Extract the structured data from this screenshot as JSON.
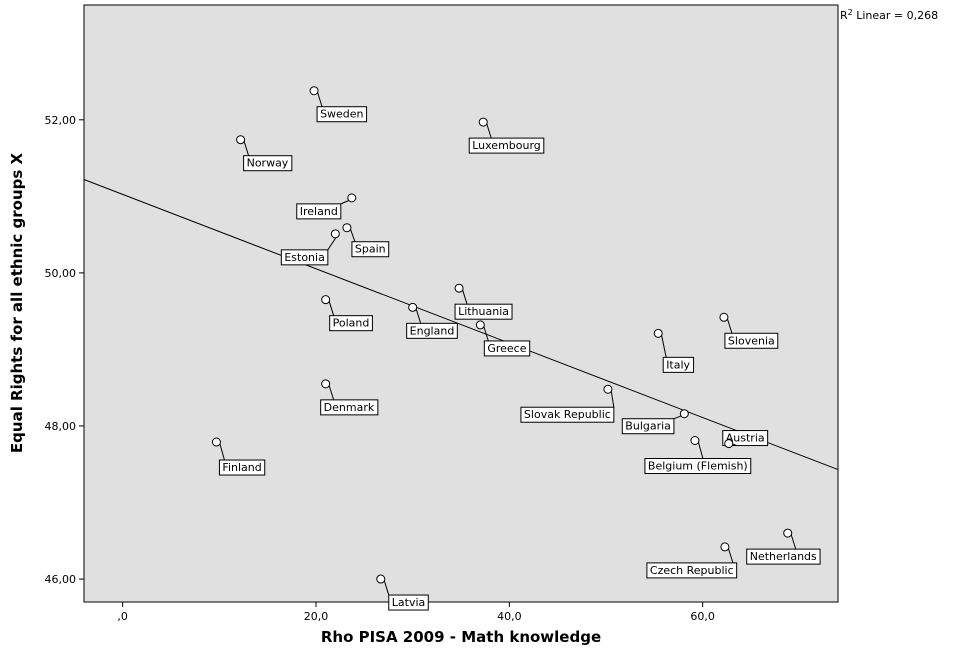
{
  "chart_data": {
    "type": "scatter",
    "xlabel": "Rho PISA 2009 - Math knowledge",
    "ylabel": "Equal Rights for all ethnic groups X",
    "xlim": [
      -4,
      74
    ],
    "ylim": [
      45.7,
      53.5
    ],
    "x_ticks": [
      0,
      20,
      40,
      60
    ],
    "x_tick_labels": [
      ",0",
      "20,0",
      "40,0",
      "60,0"
    ],
    "y_ticks": [
      46,
      48,
      50,
      52
    ],
    "y_tick_labels": [
      "46,00",
      "48,00",
      "50,00",
      "52,00"
    ],
    "grid": false,
    "fit_line": {
      "label_prefix": "R",
      "label_sup": "2",
      "label_suffix": " Linear = 0,268",
      "start": [
        -4,
        51.22
      ],
      "end": [
        74,
        47.43
      ]
    },
    "points": [
      {
        "label": "Sweden",
        "x": 19.8,
        "y": 52.38
      },
      {
        "label": "Luxembourg",
        "x": 37.3,
        "y": 51.97
      },
      {
        "label": "Norway",
        "x": 12.2,
        "y": 51.74
      },
      {
        "label": "Ireland",
        "x": 23.7,
        "y": 50.98
      },
      {
        "label": "Spain",
        "x": 23.2,
        "y": 50.59
      },
      {
        "label": "Estonia",
        "x": 22.0,
        "y": 50.51
      },
      {
        "label": "Lithuania",
        "x": 34.8,
        "y": 49.8
      },
      {
        "label": "Poland",
        "x": 21.0,
        "y": 49.65
      },
      {
        "label": "England",
        "x": 30.0,
        "y": 49.55
      },
      {
        "label": "Slovenia",
        "x": 62.2,
        "y": 49.42
      },
      {
        "label": "Greece",
        "x": 37.0,
        "y": 49.32
      },
      {
        "label": "Italy",
        "x": 55.4,
        "y": 49.21
      },
      {
        "label": "Denmark",
        "x": 21.0,
        "y": 48.55
      },
      {
        "label": "Slovak Republic",
        "x": 50.2,
        "y": 48.48
      },
      {
        "label": "Bulgaria",
        "x": 58.1,
        "y": 48.16
      },
      {
        "label": "Austria",
        "x": 62.7,
        "y": 47.77
      },
      {
        "label": "Belgium (Flemish)",
        "x": 59.2,
        "y": 47.81
      },
      {
        "label": "Finland",
        "x": 9.7,
        "y": 47.79
      },
      {
        "label": "Netherlands",
        "x": 68.8,
        "y": 46.6
      },
      {
        "label": "Czech Republic",
        "x": 62.3,
        "y": 46.42
      },
      {
        "label": "Latvia",
        "x": 26.7,
        "y": 46.0
      }
    ]
  }
}
